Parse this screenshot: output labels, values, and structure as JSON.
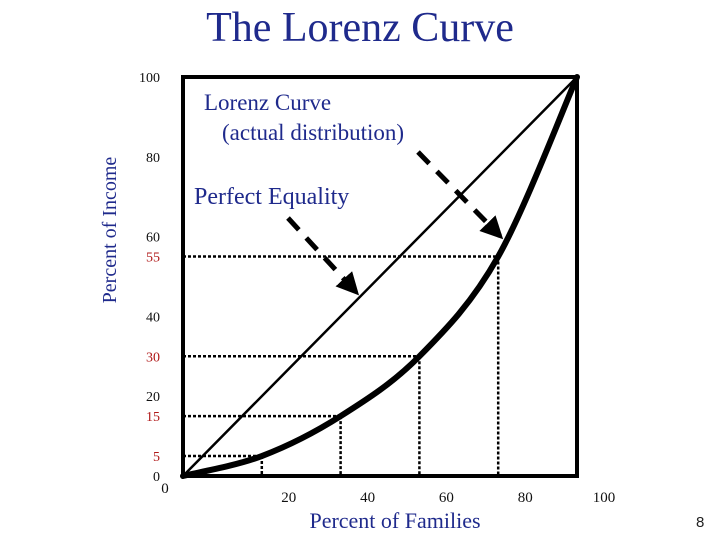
{
  "title": "The Lorenz Curve",
  "page_number": "8",
  "colors": {
    "title": "#1f2a8c",
    "axis_text": "#111111",
    "y_tick_red": "#b01818",
    "line": "#000000"
  },
  "chart_data": {
    "type": "line",
    "title": "The Lorenz Curve",
    "xlabel": "Percent of Families",
    "ylabel": "Percent of Income",
    "xlim": [
      0,
      100
    ],
    "ylim": [
      0,
      100
    ],
    "grid": false,
    "x_ticks": [
      "0",
      "20",
      "40",
      "60",
      "80",
      "100"
    ],
    "y_ticks": [
      {
        "label": "0",
        "value": 0,
        "color": "#111111"
      },
      {
        "label": "5",
        "value": 5,
        "color": "#b01818"
      },
      {
        "label": "15",
        "value": 15,
        "color": "#b01818"
      },
      {
        "label": "20",
        "value": 20,
        "color": "#111111"
      },
      {
        "label": "30",
        "value": 30,
        "color": "#b01818"
      },
      {
        "label": "40",
        "value": 40,
        "color": "#111111"
      },
      {
        "label": "55",
        "value": 55,
        "color": "#b01818"
      },
      {
        "label": "60",
        "value": 60,
        "color": "#111111"
      },
      {
        "label": "80",
        "value": 80,
        "color": "#111111"
      },
      {
        "label": "100",
        "value": 100,
        "color": "#111111"
      }
    ],
    "series": [
      {
        "name": "Perfect Equality",
        "style": "thin",
        "points": [
          [
            0,
            0
          ],
          [
            100,
            100
          ]
        ]
      },
      {
        "name": "Lorenz Curve (actual distribution)",
        "style": "thick",
        "points": [
          [
            0,
            0
          ],
          [
            20,
            5
          ],
          [
            40,
            15
          ],
          [
            60,
            30
          ],
          [
            80,
            55
          ],
          [
            100,
            100
          ]
        ]
      }
    ],
    "reference_points": [
      {
        "x": 20,
        "y": 5
      },
      {
        "x": 40,
        "y": 15
      },
      {
        "x": 60,
        "y": 30
      },
      {
        "x": 80,
        "y": 55
      }
    ],
    "annotations": {
      "lorenz_line1": "Lorenz Curve",
      "lorenz_line2": "(actual distribution)",
      "equality": "Perfect Equality"
    }
  }
}
